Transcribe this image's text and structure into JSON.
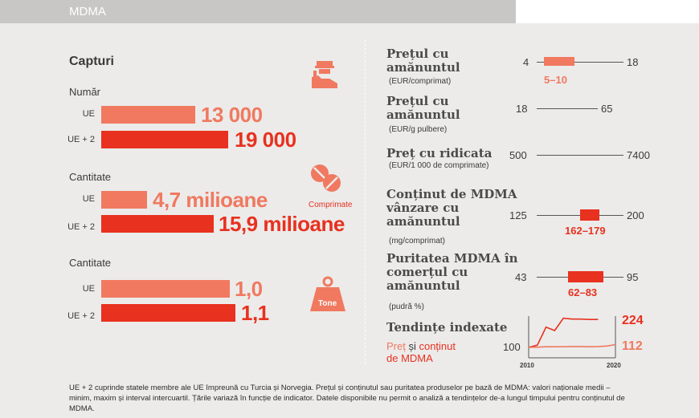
{
  "header": {
    "title": "MDMA"
  },
  "seizures": {
    "title": "Capturi",
    "groups": [
      {
        "title": "Număr",
        "icon": "police-officer-icon",
        "icon_label": "",
        "rows": [
          {
            "label": "UE",
            "value": 13000,
            "display": "13 000"
          },
          {
            "label": "UE + 2",
            "value": 19000,
            "display": "19 000"
          }
        ]
      },
      {
        "title": "Cantitate",
        "icon": "pills-icon",
        "icon_label": "Comprimate",
        "rows": [
          {
            "label": "UE",
            "value": 4.7,
            "display": "4,7 milioane"
          },
          {
            "label": "UE + 2",
            "value": 15.9,
            "display": "15,9 milioane"
          }
        ]
      },
      {
        "title": "Cantitate",
        "icon": "weight-icon",
        "icon_label": "Tone",
        "rows": [
          {
            "label": "UE",
            "value": 1.0,
            "display": "1,0"
          },
          {
            "label": "UE + 2",
            "value": 1.1,
            "display": "1,1"
          }
        ]
      }
    ]
  },
  "indicators": [
    {
      "title": "Prețul cu amănuntul",
      "unit": "(EUR/comprimat)",
      "min": 4,
      "max": 18,
      "iqr": [
        5,
        10
      ],
      "iqr_label": "5–10",
      "color": "#f07960"
    },
    {
      "title": "Prețul cu amănuntul",
      "unit": "(EUR/g pulbere)",
      "min": 18,
      "max": 65,
      "iqr": null,
      "iqr_label": ""
    },
    {
      "title": "Preț cu ridicata",
      "unit": "(EUR/1 000 de comprimate)",
      "min": 500,
      "max": 7400,
      "iqr": null,
      "iqr_label": ""
    },
    {
      "title": "Conținut de MDMA vânzare cu amănuntul",
      "unit": "(mg/comprimat)",
      "min": 125,
      "max": 200,
      "iqr": [
        162,
        179
      ],
      "iqr_label": "162–179",
      "color": "#e8311f"
    },
    {
      "title": "Puritatea MDMA în comerțul cu amănuntul",
      "unit": "(pudră %)",
      "min": 43,
      "max": 95,
      "iqr": [
        62,
        83
      ],
      "iqr_label": "62–83",
      "color": "#e8311f"
    }
  ],
  "trends": {
    "title": "Tendințe indexate",
    "legend_price": "Preț",
    "legend_and": " și ",
    "legend_content": "conținut",
    "legend_line2": "de MDMA",
    "price_color": "#f07960",
    "content_color": "#e8311f"
  },
  "chart_data": {
    "type": "line",
    "x": [
      2010,
      2011,
      2012,
      2013,
      2014,
      2015,
      2016,
      2017,
      2018,
      2019,
      2020
    ],
    "x_ticks": [
      2010,
      2020
    ],
    "y_start_label": "100",
    "series": [
      {
        "name": "conținut de MDMA",
        "values": [
          100,
          110,
          190,
          175,
          230,
          226,
          226,
          224,
          224,
          null,
          null
        ],
        "end_label": "224"
      },
      {
        "name": "Preț",
        "values": [
          100,
          101,
          103,
          103,
          103,
          104,
          104,
          103,
          104,
          106,
          112
        ],
        "end_label": "112"
      }
    ]
  },
  "footnote": "UE + 2 cuprinde statele membre ale UE împreună cu Turcia și Norvegia. Prețul și conținutul sau puritatea produselor pe bază de MDMA: valori naționale medii – minim, maxim și interval intercuartil. Țările variază în funcție de indicator. Datele disponibile nu permit o analiză a tendințelor de-a lungul timpului pentru conținutul de MDMA."
}
